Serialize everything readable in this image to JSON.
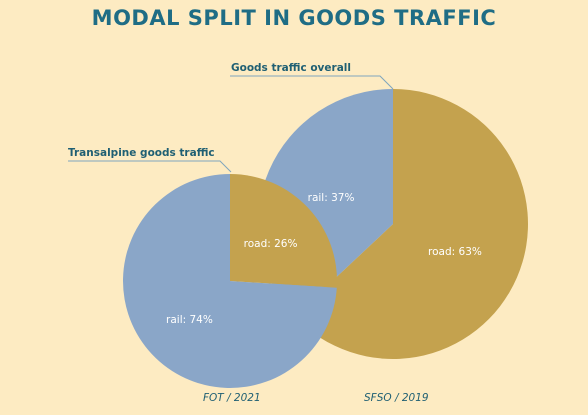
{
  "title": "MODAL SPLIT IN GOODS TRAFFIC",
  "colors": {
    "background": "#fdebc2",
    "rail": "#8aa6c8",
    "road": "#c4a24e",
    "title": "#1f6d85"
  },
  "chart_data": [
    {
      "type": "pie",
      "title": "Goods traffic overall",
      "source": "SFSO / 2019",
      "slices": [
        {
          "label": "road: 63%",
          "category": "road",
          "value": 63
        },
        {
          "label": "rail: 37%",
          "category": "rail",
          "value": 37
        }
      ]
    },
    {
      "type": "pie",
      "title": "Transalpine goods traffic",
      "source": "FOT / 2021",
      "slices": [
        {
          "label": "road: 26%",
          "category": "road",
          "value": 26
        },
        {
          "label": "rail: 74%",
          "category": "rail",
          "value": 74
        }
      ]
    }
  ]
}
